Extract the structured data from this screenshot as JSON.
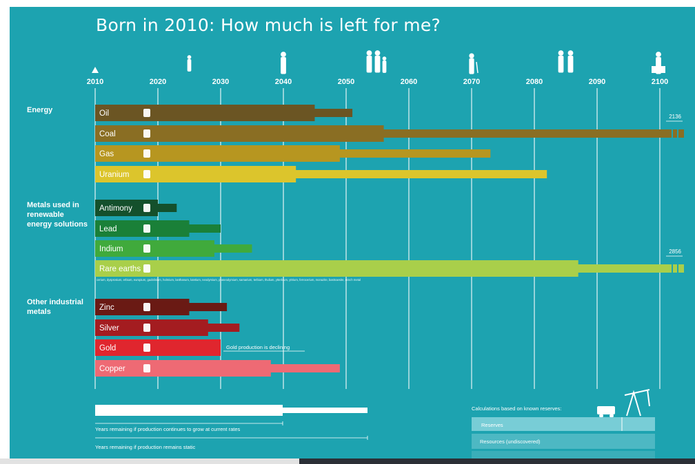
{
  "title": "Born in 2010: How much is left for me?",
  "colors": {
    "background": "#1da3b0",
    "energy": [
      "#6b5523",
      "#8a6e23",
      "#b79620",
      "#dcc52c"
    ],
    "metals": [
      "#14502c",
      "#1a8038",
      "#40aa3c",
      "#a9cf4a"
    ],
    "industrial": [
      "#6a1a14",
      "#a41c20",
      "#e0262e",
      "#ee6a74"
    ]
  },
  "life_stage_icons": [
    "baby-icon",
    "child-icon",
    "adult-icon",
    "family-icon",
    "elderly-icon",
    "elderly-couple-icon",
    "grave-icon"
  ],
  "groups": [
    {
      "label": "Energy"
    },
    {
      "label": "Metals used in\nrenewable\nenergy solutions"
    },
    {
      "label": "Other industrial\nmetals"
    }
  ],
  "rare_earths_list": "cerium, dysprosium, erbium, europium, gadolinium, holmium, lanthanum, lutetium, neodymium, praseodymium, samarium, terbium, thulium, ytterbium, yttrium, ferrocerium, monazite, bastnaesite, misch metal",
  "annotations": {
    "coal_end": "2136",
    "rare_earths_end": "2856",
    "gold_note": "Gold production is declining"
  },
  "legend": {
    "growth_label": "Years remaining if production continues to grow at current rates",
    "static_label": "Years remaining if production remains static",
    "reserves_title": "Calculations based on known reserves:",
    "reserves": "Reserves",
    "resources": "Resources (undiscovered)"
  },
  "chart_data": {
    "type": "bar",
    "title": "Born in 2010: How much is left for me?",
    "x_ticks": [
      2010,
      2020,
      2030,
      2040,
      2050,
      2060,
      2070,
      2080,
      2090,
      2100
    ],
    "xlim": [
      2010,
      2100
    ],
    "grid": true,
    "series": [
      {
        "name": "Years remaining if production continues to grow at current rates"
      },
      {
        "name": "Years remaining if production remains static"
      }
    ],
    "categories": [
      "Oil",
      "Coal",
      "Gas",
      "Uranium",
      "Antimony",
      "Lead",
      "Indium",
      "Rare earths",
      "Zinc",
      "Silver",
      "Gold",
      "Copper"
    ],
    "bars": [
      {
        "label": "Oil",
        "group": 0,
        "growth": 2045,
        "static": 2051,
        "icon": "fuel-pump-icon"
      },
      {
        "label": "Coal",
        "group": 0,
        "growth": 2056,
        "static": 2136,
        "icon": "lightning-icon"
      },
      {
        "label": "Gas",
        "group": 0,
        "growth": 2049,
        "static": 2073,
        "icon": "lightning-icon"
      },
      {
        "label": "Uranium",
        "group": 0,
        "growth": 2042,
        "static": 2082,
        "icon": "radiation-icon"
      },
      {
        "label": "Antimony",
        "group": 1,
        "growth": 2020,
        "static": 2023,
        "icon": "battery-icon"
      },
      {
        "label": "Lead",
        "group": 1,
        "growth": 2025,
        "static": 2030,
        "icon": "car-icon"
      },
      {
        "label": "Indium",
        "group": 1,
        "growth": 2029,
        "static": 2035,
        "icon": "solar-panel-icon"
      },
      {
        "label": "Rare earths",
        "group": 1,
        "growth": 2087,
        "static": 2856,
        "icon": "wind-turbine-icon"
      },
      {
        "label": "Zinc",
        "group": 2,
        "growth": 2025,
        "static": 2031,
        "icon": "screwdriver-icon"
      },
      {
        "label": "Silver",
        "group": 2,
        "growth": 2028,
        "static": 2033,
        "icon": "ring-icon"
      },
      {
        "label": "Gold",
        "group": 2,
        "growth": 2030,
        "static": null,
        "icon": "phone-icon"
      },
      {
        "label": "Copper",
        "group": 2,
        "growth": 2038,
        "static": 2049,
        "icon": "tap-icon"
      }
    ]
  }
}
